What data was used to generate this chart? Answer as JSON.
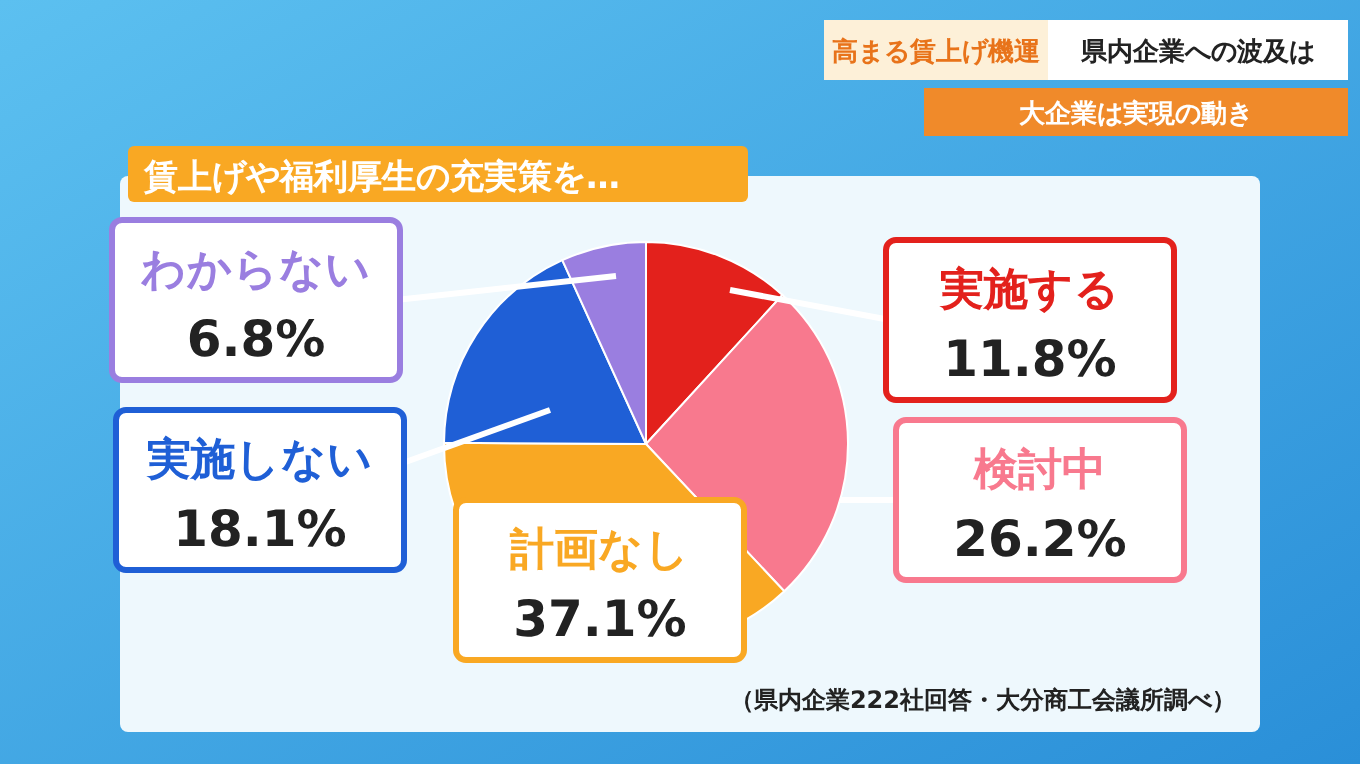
{
  "chart_data": {
    "type": "pie",
    "title": "賃上げや福利厚生の充実策を…",
    "categories": [
      "実施する",
      "検討中",
      "計画なし",
      "実施しない",
      "わからない"
    ],
    "values": [
      11.8,
      26.2,
      37.1,
      18.1,
      6.8
    ],
    "value_labels": [
      "11.8%",
      "26.2%",
      "37.1%",
      "18.1%",
      "6.8%"
    ],
    "colors": [
      "#e3211c",
      "#f8798e",
      "#f9a823",
      "#1f5fd6",
      "#9a7ee0"
    ],
    "annotations": [
      "高まる賃上げ機運",
      "県内企業への波及は",
      "大企業は実現の動き",
      "（県内企業222社回答・大分商工会議所調べ）"
    ]
  }
}
